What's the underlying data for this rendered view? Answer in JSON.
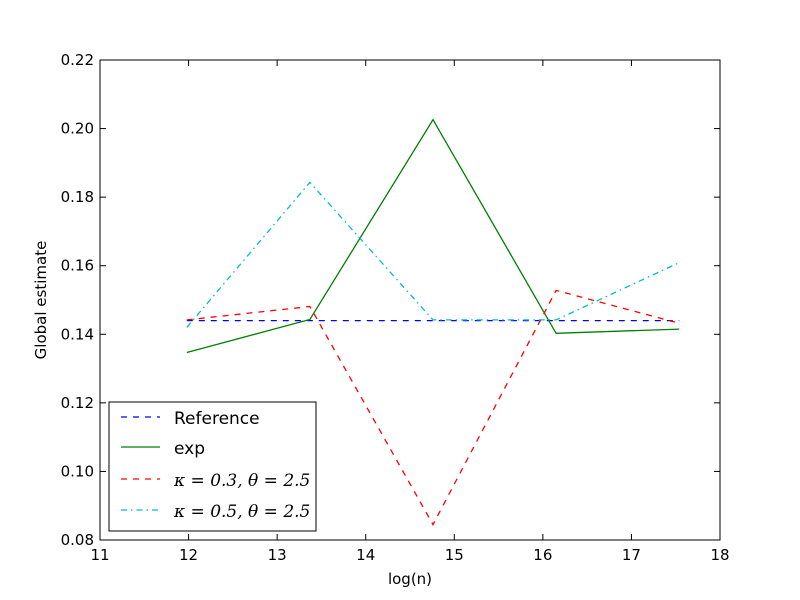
{
  "chart_data": {
    "type": "line",
    "xlabel": "log(n)",
    "ylabel": "Global estimate",
    "xlim": [
      11,
      18
    ],
    "ylim": [
      0.08,
      0.22
    ],
    "xticks": [
      11,
      12,
      13,
      14,
      15,
      16,
      17,
      18
    ],
    "yticks": [
      0.08,
      0.1,
      0.12,
      0.14,
      0.16,
      0.18,
      0.2,
      0.22
    ],
    "ytick_labels": [
      "0.08",
      "0.10",
      "0.12",
      "0.14",
      "0.16",
      "0.18",
      "0.20",
      "0.22"
    ],
    "grid": false,
    "legend_position": "lower-left",
    "x": [
      11.98,
      13.37,
      14.76,
      16.15,
      17.54
    ],
    "series": [
      {
        "name": "Reference",
        "color": "#0000ff",
        "style": "dashed",
        "values": [
          0.144,
          0.144,
          0.144,
          0.144,
          0.144
        ]
      },
      {
        "name": "exp",
        "color": "#008000",
        "style": "solid",
        "values": [
          0.1347,
          0.1443,
          0.2026,
          0.1403,
          0.1415
        ]
      },
      {
        "name": "κ = 0.3, θ = 2.5",
        "color": "#ff0000",
        "style": "dashed",
        "values": [
          0.1442,
          0.1481,
          0.0845,
          0.1528,
          0.1432
        ]
      },
      {
        "name": "κ = 0.5, θ = 2.5",
        "color": "#00bfbf",
        "style": "dashdot",
        "values": [
          0.142,
          0.1843,
          0.1442,
          0.1442,
          0.1609
        ]
      }
    ]
  }
}
